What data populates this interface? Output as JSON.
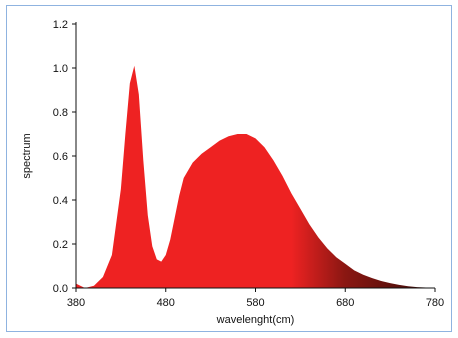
{
  "chart_data": {
    "type": "area",
    "title": "",
    "xlabel": "wavelenght(cm)",
    "ylabel": "spectrum",
    "xlim": [
      380,
      780
    ],
    "ylim": [
      0,
      1.2
    ],
    "x_ticks": [
      "380",
      "480",
      "580",
      "680",
      "780"
    ],
    "y_ticks": [
      "0.0",
      "0.2",
      "0.4",
      "0.6",
      "0.8",
      "1.0",
      "1.2"
    ],
    "grid": false,
    "legend": "none",
    "colors": {
      "fill": "#ee2222",
      "fill_dark": "#3a0b08",
      "axis": "#111111",
      "frame": "#8fb3e0"
    },
    "series": [
      {
        "x": [
          380,
          390,
          400,
          410,
          420,
          430,
          435,
          440,
          445,
          450,
          455,
          460,
          465,
          470,
          475,
          480,
          485,
          490,
          495,
          500,
          510,
          520,
          530,
          540,
          550,
          560,
          570,
          580,
          590,
          600,
          610,
          620,
          630,
          640,
          650,
          660,
          670,
          680,
          690,
          700,
          710,
          720,
          730,
          740,
          750,
          760,
          770,
          780
        ],
        "y": [
          0.02,
          0.0,
          0.01,
          0.05,
          0.15,
          0.45,
          0.7,
          0.93,
          1.01,
          0.88,
          0.58,
          0.33,
          0.19,
          0.13,
          0.12,
          0.15,
          0.22,
          0.32,
          0.42,
          0.5,
          0.57,
          0.61,
          0.64,
          0.67,
          0.69,
          0.7,
          0.7,
          0.68,
          0.64,
          0.58,
          0.51,
          0.43,
          0.36,
          0.29,
          0.23,
          0.18,
          0.14,
          0.11,
          0.08,
          0.06,
          0.045,
          0.032,
          0.022,
          0.014,
          0.008,
          0.004,
          0.002,
          0.0
        ]
      }
    ]
  }
}
